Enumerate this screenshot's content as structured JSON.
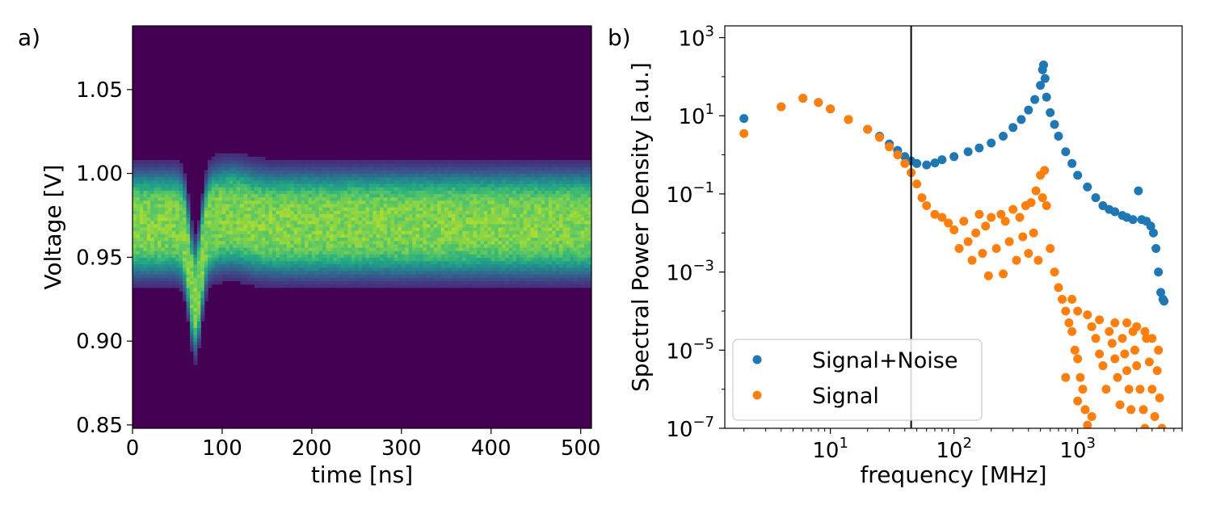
{
  "chart_data": [
    {
      "type": "heatmap",
      "panel_label": "a)",
      "xlabel": "time [ns]",
      "ylabel": "Voltage [V]",
      "xlim": [
        0,
        512
      ],
      "ylim": [
        0.848,
        1.088
      ],
      "xticks": [
        0,
        100,
        200,
        300,
        400,
        500
      ],
      "yticks": [
        0.85,
        0.9,
        0.95,
        1.0,
        1.05
      ],
      "ytick_labels": [
        "0.85",
        "0.90",
        "0.95",
        "1.00",
        "1.05"
      ],
      "colormap": "viridis",
      "background_color": "#440154",
      "baseline_voltage": 0.97,
      "band_halfwidth_v": 0.03,
      "pulse": {
        "time_ns": 70,
        "min_voltage": 0.905
      }
    },
    {
      "type": "scatter",
      "panel_label": "b)",
      "xlabel": "frequency [MHz]",
      "ylabel": "Spectral Power Density [a.u.]",
      "xscale": "log",
      "yscale": "log",
      "xlim": [
        1.4,
        7000
      ],
      "ylim": [
        1e-07,
        2000
      ],
      "xticks": [
        {
          "base": "10",
          "exp": "1",
          "value": 10
        },
        {
          "base": "10",
          "exp": "2",
          "value": 100
        },
        {
          "base": "10",
          "exp": "3",
          "value": 1000
        }
      ],
      "yticks": [
        {
          "base": "10",
          "exp": "−7",
          "value": 1e-07
        },
        {
          "base": "10",
          "exp": "−5",
          "value": 1e-05
        },
        {
          "base": "10",
          "exp": "−3",
          "value": 0.001
        },
        {
          "base": "10",
          "exp": "−1",
          "value": 0.1
        },
        {
          "base": "10",
          "exp": "1",
          "value": 10
        },
        {
          "base": "10",
          "exp": "3",
          "value": 1000
        }
      ],
      "vline_x": 45,
      "legend": {
        "placement": "lower-left"
      },
      "series": [
        {
          "name": "Signal+Noise",
          "color": "#1f77b4",
          "points": [
            [
              2,
              8.5
            ],
            [
              4,
              17
            ],
            [
              6,
              28
            ],
            [
              8,
              22
            ],
            [
              10,
              15
            ],
            [
              14,
              8
            ],
            [
              20,
              4.5
            ],
            [
              25,
              3
            ],
            [
              30,
              1.9
            ],
            [
              35,
              1.3
            ],
            [
              40,
              0.9
            ],
            [
              45,
              0.7
            ],
            [
              50,
              0.6
            ],
            [
              60,
              0.55
            ],
            [
              70,
              0.62
            ],
            [
              80,
              0.75
            ],
            [
              100,
              0.9
            ],
            [
              130,
              1.2
            ],
            [
              160,
              1.5
            ],
            [
              200,
              2
            ],
            [
              250,
              3
            ],
            [
              300,
              5
            ],
            [
              350,
              8
            ],
            [
              400,
              14
            ],
            [
              450,
              26
            ],
            [
              500,
              60
            ],
            [
              520,
              150
            ],
            [
              530,
              200
            ],
            [
              545,
              90
            ],
            [
              560,
              30
            ],
            [
              600,
              12
            ],
            [
              650,
              6
            ],
            [
              700,
              3
            ],
            [
              800,
              1.2
            ],
            [
              900,
              0.6
            ],
            [
              1000,
              0.3
            ],
            [
              1200,
              0.15
            ],
            [
              1400,
              0.08
            ],
            [
              1600,
              0.05
            ],
            [
              1800,
              0.04
            ],
            [
              2000,
              0.035
            ],
            [
              2300,
              0.028
            ],
            [
              2500,
              0.025
            ],
            [
              2800,
              0.022
            ],
            [
              3100,
              0.12
            ],
            [
              3300,
              0.022
            ],
            [
              3600,
              0.02
            ],
            [
              3900,
              0.015
            ],
            [
              4100,
              0.01
            ],
            [
              4300,
              0.004
            ],
            [
              4500,
              0.001
            ],
            [
              4700,
              0.0003
            ],
            [
              4900,
              0.0002
            ],
            [
              5000,
              0.00018
            ]
          ]
        },
        {
          "name": "Signal",
          "color": "#ff7f0e",
          "points": [
            [
              2,
              3.5
            ],
            [
              4,
              17
            ],
            [
              6,
              28
            ],
            [
              8,
              22
            ],
            [
              10,
              15
            ],
            [
              14,
              8
            ],
            [
              20,
              4.5
            ],
            [
              25,
              2.8
            ],
            [
              30,
              1.6
            ],
            [
              35,
              1.0
            ],
            [
              40,
              0.6
            ],
            [
              45,
              0.35
            ],
            [
              50,
              0.18
            ],
            [
              55,
              0.08
            ],
            [
              60,
              0.05
            ],
            [
              70,
              0.03
            ],
            [
              80,
              0.025
            ],
            [
              90,
              0.018
            ],
            [
              100,
              0.012
            ],
            [
              110,
              0.004
            ],
            [
              120,
              0.02
            ],
            [
              130,
              0.006
            ],
            [
              140,
              0.002
            ],
            [
              150,
              0.01
            ],
            [
              160,
              0.03
            ],
            [
              170,
              0.003
            ],
            [
              180,
              0.015
            ],
            [
              190,
              0.0008
            ],
            [
              200,
              0.025
            ],
            [
              220,
              0.004
            ],
            [
              240,
              0.03
            ],
            [
              250,
              0.0009
            ],
            [
              260,
              0.02
            ],
            [
              280,
              0.006
            ],
            [
              300,
              0.04
            ],
            [
              320,
              0.002
            ],
            [
              340,
              0.025
            ],
            [
              360,
              0.008
            ],
            [
              380,
              0.05
            ],
            [
              400,
              0.003
            ],
            [
              420,
              0.06
            ],
            [
              440,
              0.01
            ],
            [
              460,
              0.12
            ],
            [
              480,
              0.002
            ],
            [
              500,
              0.3
            ],
            [
              520,
              0.08
            ],
            [
              540,
              0.4
            ],
            [
              560,
              0.05
            ],
            [
              600,
              0.004
            ],
            [
              650,
              0.001
            ],
            [
              700,
              0.0004
            ],
            [
              750,
              0.0002
            ],
            [
              800,
              0.0001
            ],
            [
              850,
              5e-05
            ],
            [
              900,
              3e-05
            ],
            [
              950,
              1e-05
            ],
            [
              1000,
              6e-06
            ],
            [
              1050,
              2e-06
            ],
            [
              1100,
              1e-06
            ],
            [
              1150,
              3e-07
            ],
            [
              1200,
              1.2e-07
            ],
            [
              1300,
              4e-05
            ],
            [
              1400,
              2e-05
            ],
            [
              1500,
              8e-06
            ],
            [
              1600,
              4e-06
            ],
            [
              1700,
              1e-06
            ],
            [
              1800,
              3e-05
            ],
            [
              1900,
              1.5e-05
            ],
            [
              2000,
              6e-06
            ],
            [
              2100,
              2e-06
            ],
            [
              2200,
              4e-07
            ],
            [
              2300,
              2e-05
            ],
            [
              2400,
              8e-06
            ],
            [
              2500,
              3e-06
            ],
            [
              2600,
              1e-06
            ],
            [
              2700,
              3e-07
            ],
            [
              2800,
              3e-05
            ],
            [
              2900,
              1e-05
            ],
            [
              3000,
              4e-06
            ],
            [
              3200,
              1e-06
            ],
            [
              3400,
              3e-07
            ],
            [
              3600,
              2e-05
            ],
            [
              3800,
              5e-06
            ],
            [
              4000,
              1e-06
            ],
            [
              4200,
              2e-07
            ],
            [
              4400,
              3e-06
            ],
            [
              4600,
              6e-07
            ],
            [
              4800,
              1e-07
            ],
            [
              900,
              0.0002
            ],
            [
              1000,
              0.0001
            ],
            [
              1200,
              8e-05
            ],
            [
              1500,
              6e-05
            ],
            [
              2000,
              5e-05
            ],
            [
              2500,
              5e-05
            ],
            [
              3000,
              4e-05
            ],
            [
              3500,
              3e-05
            ],
            [
              4000,
              2e-05
            ],
            [
              4500,
              1e-05
            ],
            [
              800,
              2e-06
            ],
            [
              1000,
              5e-07
            ],
            [
              1300,
              2e-07
            ],
            [
              3500,
              1e-07
            ]
          ]
        }
      ]
    }
  ]
}
